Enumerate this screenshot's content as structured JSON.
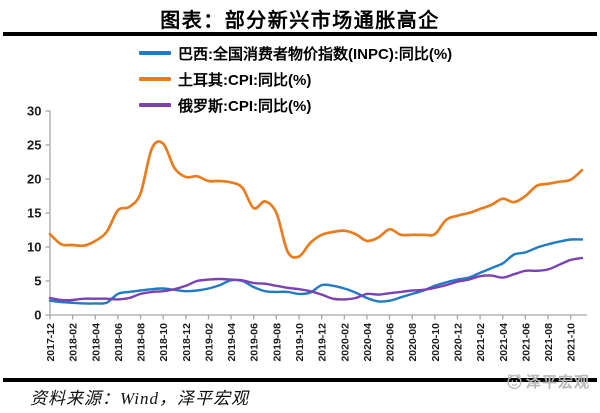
{
  "title": "图表：部分新兴市场通胀高企",
  "source_note": "资料来源：Wind，泽平宏观",
  "watermark": {
    "label": "泽平宏观",
    "icon": "mascot-face-icon",
    "color": "#b8b8b8"
  },
  "axis": {
    "line_color": "#a6a6a6",
    "tick_label_color": "#1a1a1a"
  },
  "chart_data": {
    "type": "line",
    "title": "图表：部分新兴市场通胀高企",
    "xlabel": "",
    "ylabel": "",
    "ylim": [
      0,
      30
    ],
    "yticks": [
      0,
      5,
      10,
      15,
      20,
      25,
      30
    ],
    "grid": false,
    "legend_position": "top-left",
    "x": [
      "2017-12",
      "2018-01",
      "2018-02",
      "2018-03",
      "2018-04",
      "2018-05",
      "2018-06",
      "2018-07",
      "2018-08",
      "2018-09",
      "2018-10",
      "2018-11",
      "2018-12",
      "2019-01",
      "2019-02",
      "2019-03",
      "2019-04",
      "2019-05",
      "2019-06",
      "2019-07",
      "2019-08",
      "2019-09",
      "2019-10",
      "2019-11",
      "2019-12",
      "2020-01",
      "2020-02",
      "2020-03",
      "2020-04",
      "2020-05",
      "2020-06",
      "2020-07",
      "2020-08",
      "2020-09",
      "2020-10",
      "2020-11",
      "2020-12",
      "2021-01",
      "2021-02",
      "2021-03",
      "2021-04",
      "2021-05",
      "2021-06",
      "2021-07",
      "2021-08",
      "2021-09",
      "2021-10",
      "2021-11"
    ],
    "x_tick_labels": [
      "2017-12",
      "2018-02",
      "2018-04",
      "2018-06",
      "2018-08",
      "2018-10",
      "2018-12",
      "2019-02",
      "2019-04",
      "2019-06",
      "2019-08",
      "2019-10",
      "2019-12",
      "2020-02",
      "2020-04",
      "2020-06",
      "2020-08",
      "2020-10",
      "2020-12",
      "2021-02",
      "2021-04",
      "2021-06",
      "2021-08",
      "2021-10"
    ],
    "series": [
      {
        "name": "巴西:全国消费者物价指数(INPC):同比(%)",
        "color": "#2279C4",
        "values": [
          2.1,
          1.9,
          1.8,
          1.7,
          1.7,
          1.8,
          3.1,
          3.4,
          3.6,
          3.8,
          3.9,
          3.7,
          3.5,
          3.6,
          3.9,
          4.4,
          5.1,
          5.0,
          4.1,
          3.5,
          3.4,
          3.4,
          3.1,
          3.3,
          4.4,
          4.3,
          3.9,
          3.3,
          2.5,
          2.0,
          2.1,
          2.6,
          3.1,
          3.6,
          4.3,
          4.8,
          5.2,
          5.5,
          6.2,
          6.9,
          7.6,
          8.9,
          9.2,
          9.9,
          10.4,
          10.8,
          11.1,
          11.1
        ]
      },
      {
        "name": "土耳其:CPI:同比(%)",
        "color": "#E87C1E",
        "values": [
          11.9,
          10.4,
          10.3,
          10.2,
          10.9,
          12.2,
          15.4,
          15.9,
          17.9,
          24.5,
          25.2,
          21.6,
          20.3,
          20.4,
          19.7,
          19.7,
          19.5,
          18.7,
          15.7,
          16.7,
          15.0,
          9.3,
          8.6,
          10.6,
          11.8,
          12.2,
          12.4,
          11.9,
          10.9,
          11.4,
          12.6,
          11.8,
          11.8,
          11.8,
          11.9,
          14.0,
          14.6,
          15.0,
          15.6,
          16.2,
          17.1,
          16.6,
          17.5,
          19.0,
          19.3,
          19.6,
          19.9,
          21.3
        ]
      },
      {
        "name": "俄罗斯:CPI:同比(%)",
        "color": "#7B42B4",
        "values": [
          2.5,
          2.2,
          2.2,
          2.4,
          2.4,
          2.4,
          2.3,
          2.5,
          3.1,
          3.4,
          3.5,
          3.8,
          4.3,
          5.0,
          5.2,
          5.3,
          5.2,
          5.1,
          4.7,
          4.6,
          4.3,
          4.0,
          3.8,
          3.5,
          3.0,
          2.4,
          2.3,
          2.5,
          3.1,
          3.0,
          3.2,
          3.4,
          3.6,
          3.7,
          4.0,
          4.4,
          4.9,
          5.2,
          5.7,
          5.8,
          5.5,
          6.0,
          6.5,
          6.5,
          6.7,
          7.4,
          8.1,
          8.4
        ]
      }
    ]
  }
}
